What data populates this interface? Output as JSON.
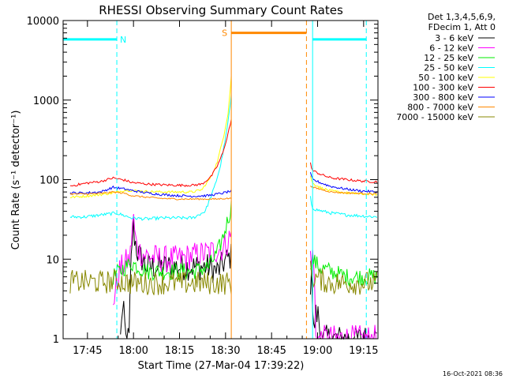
{
  "chart_data": {
    "type": "line",
    "title": "RHESSI Observing Summary Count Rates",
    "xlabel": "Start Time (27-Mar-04 17:39:22)",
    "ylabel": "Count Rate (s⁻¹ detector⁻¹)",
    "yscale": "log",
    "ylim": [
      1,
      10000
    ],
    "xlim_minutes": [
      17.5,
      17.65,
      18.0,
      18.25,
      18.5
    ],
    "x_range": [
      -2.3,
      100.3
    ],
    "x_ticks": [
      {
        "t": 5.63,
        "label": "17:45"
      },
      {
        "t": 20.63,
        "label": "18:00"
      },
      {
        "t": 35.63,
        "label": "18:15"
      },
      {
        "t": 50.63,
        "label": "18:30"
      },
      {
        "t": 65.63,
        "label": "18:45"
      },
      {
        "t": 80.63,
        "label": "19:00"
      },
      {
        "t": 95.63,
        "label": "19:15"
      }
    ],
    "y_ticks": [
      {
        "v": 1,
        "label": "1"
      },
      {
        "v": 10,
        "label": "10"
      },
      {
        "v": 100,
        "label": "100"
      },
      {
        "v": 1000,
        "label": "1000"
      },
      {
        "v": 10000,
        "label": "10000"
      }
    ],
    "legend_header": [
      "Det 1,3,4,5,6,9,",
      "FDecim 1, Att 0"
    ],
    "timestamp": "16-Oct-2021 08:36",
    "gaps": [
      [
        52.5,
        78.3
      ]
    ],
    "series": [
      {
        "name": "3 - 6 keV",
        "color": "#000000",
        "noise": 0.35,
        "points": [
          [
            16.4,
            1
          ],
          [
            16.6,
            2
          ],
          [
            17.6,
            2
          ],
          [
            18.0,
            1
          ],
          [
            19.3,
            1
          ],
          [
            19.6,
            5
          ],
          [
            20.0,
            12
          ],
          [
            20.5,
            30
          ],
          [
            21.0,
            18
          ],
          [
            22.0,
            12
          ],
          [
            25,
            8
          ],
          [
            30,
            8
          ],
          [
            35,
            8
          ],
          [
            40,
            8
          ],
          [
            45,
            8
          ],
          [
            48,
            7
          ],
          [
            50,
            9
          ],
          [
            52.5,
            11
          ],
          [
            78.3,
            5
          ],
          [
            78.8,
            12
          ],
          [
            79.1,
            1
          ],
          [
            80,
            2
          ],
          [
            81,
            2
          ],
          [
            81.5,
            1
          ],
          [
            100,
            1
          ]
        ]
      },
      {
        "name": "6 - 12 keV",
        "color": "#ff00ff",
        "noise": 0.35,
        "points": [
          [
            14,
            3
          ],
          [
            16,
            7
          ],
          [
            18,
            9
          ],
          [
            19.5,
            10
          ],
          [
            20.5,
            35
          ],
          [
            21.5,
            15
          ],
          [
            23,
            12
          ],
          [
            25,
            11
          ],
          [
            30,
            10
          ],
          [
            35,
            10
          ],
          [
            40,
            11
          ],
          [
            45,
            12
          ],
          [
            50,
            14
          ],
          [
            52.5,
            20
          ],
          [
            78.3,
            12
          ],
          [
            79.5,
            9
          ],
          [
            80,
            1
          ],
          [
            81,
            1
          ],
          [
            82,
            1
          ],
          [
            82.5,
            1
          ],
          [
            100,
            1
          ]
        ]
      },
      {
        "name": "12 - 25 keV",
        "color": "#00ee00",
        "noise": 0.22,
        "points": [
          [
            14,
            6
          ],
          [
            16,
            7
          ],
          [
            18,
            8
          ],
          [
            20,
            9
          ],
          [
            22,
            8
          ],
          [
            25,
            7
          ],
          [
            30,
            7
          ],
          [
            35,
            7
          ],
          [
            40,
            7
          ],
          [
            45,
            8
          ],
          [
            48,
            12
          ],
          [
            50,
            20
          ],
          [
            52.5,
            45
          ],
          [
            78.3,
            9
          ],
          [
            79,
            10
          ],
          [
            81,
            8
          ],
          [
            85,
            7
          ],
          [
            90,
            6
          ],
          [
            95,
            6
          ],
          [
            100,
            6
          ]
        ]
      },
      {
        "name": "25 - 50 keV",
        "color": "#00ffff",
        "noise": 0.04,
        "points": [
          [
            0,
            34
          ],
          [
            5,
            34
          ],
          [
            10,
            36
          ],
          [
            15,
            38
          ],
          [
            18,
            35
          ],
          [
            20,
            33
          ],
          [
            25,
            32
          ],
          [
            30,
            33
          ],
          [
            35,
            33
          ],
          [
            40,
            33
          ],
          [
            44,
            40
          ],
          [
            47,
            80
          ],
          [
            49,
            150
          ],
          [
            51,
            400
          ],
          [
            52.5,
            1100
          ],
          [
            78.3,
            60
          ],
          [
            78.8,
            45
          ],
          [
            80,
            42
          ],
          [
            85,
            38
          ],
          [
            90,
            36
          ],
          [
            95,
            35
          ],
          [
            100,
            34
          ]
        ]
      },
      {
        "name": "50 - 100 keV",
        "color": "#ffff00",
        "noise": 0.03,
        "points": [
          [
            0,
            60
          ],
          [
            5,
            62
          ],
          [
            10,
            65
          ],
          [
            14,
            68
          ],
          [
            18,
            74
          ],
          [
            20,
            73
          ],
          [
            25,
            71
          ],
          [
            30,
            70
          ],
          [
            35,
            70
          ],
          [
            40,
            70
          ],
          [
            43,
            75
          ],
          [
            46,
            110
          ],
          [
            48,
            170
          ],
          [
            50,
            350
          ],
          [
            51.5,
            700
          ],
          [
            52.5,
            2000
          ],
          [
            78.3,
            110
          ],
          [
            79,
            90
          ],
          [
            82,
            78
          ],
          [
            85,
            72
          ],
          [
            90,
            68
          ],
          [
            95,
            66
          ],
          [
            100,
            65
          ]
        ]
      },
      {
        "name": "100 - 300 keV",
        "color": "#ff0000",
        "noise": 0.03,
        "points": [
          [
            0,
            83
          ],
          [
            5,
            90
          ],
          [
            10,
            95
          ],
          [
            14,
            105
          ],
          [
            18,
            98
          ],
          [
            20,
            92
          ],
          [
            25,
            88
          ],
          [
            30,
            86
          ],
          [
            35,
            85
          ],
          [
            40,
            85
          ],
          [
            43,
            88
          ],
          [
            46,
            110
          ],
          [
            48,
            150
          ],
          [
            50,
            230
          ],
          [
            52.5,
            560
          ],
          [
            78.3,
            160
          ],
          [
            79,
            130
          ],
          [
            82,
            115
          ],
          [
            85,
            105
          ],
          [
            90,
            100
          ],
          [
            95,
            96
          ],
          [
            100,
            94
          ]
        ]
      },
      {
        "name": "300 - 800 keV",
        "color": "#0000ff",
        "noise": 0.03,
        "points": [
          [
            0,
            68
          ],
          [
            5,
            68
          ],
          [
            10,
            70
          ],
          [
            14,
            80
          ],
          [
            18,
            76
          ],
          [
            20,
            73
          ],
          [
            25,
            68
          ],
          [
            30,
            65
          ],
          [
            35,
            63
          ],
          [
            40,
            62
          ],
          [
            45,
            63
          ],
          [
            48,
            66
          ],
          [
            50,
            68
          ],
          [
            52.5,
            72
          ],
          [
            78.3,
            120
          ],
          [
            79,
            100
          ],
          [
            82,
            90
          ],
          [
            85,
            82
          ],
          [
            90,
            76
          ],
          [
            95,
            72
          ],
          [
            100,
            70
          ]
        ]
      },
      {
        "name": "800 - 7000 keV",
        "color": "#ff8800",
        "noise": 0.02,
        "points": [
          [
            0,
            66
          ],
          [
            5,
            66
          ],
          [
            10,
            67
          ],
          [
            14,
            70
          ],
          [
            18,
            67
          ],
          [
            20,
            63
          ],
          [
            25,
            60
          ],
          [
            30,
            58
          ],
          [
            35,
            57
          ],
          [
            40,
            57
          ],
          [
            45,
            57
          ],
          [
            48,
            57
          ],
          [
            50,
            58
          ],
          [
            52.5,
            58
          ],
          [
            78.3,
            85
          ],
          [
            79,
            80
          ],
          [
            82,
            75
          ],
          [
            85,
            70
          ],
          [
            90,
            68
          ],
          [
            95,
            67
          ],
          [
            100,
            66
          ]
        ]
      },
      {
        "name": "7000 - 15000 keV",
        "color": "#888800",
        "noise": 0.3,
        "points": [
          [
            0,
            5.2
          ],
          [
            5,
            5.2
          ],
          [
            10,
            5.1
          ],
          [
            15,
            5.3
          ],
          [
            20,
            5.0
          ],
          [
            25,
            5.0
          ],
          [
            30,
            5.0
          ],
          [
            35,
            5.0
          ],
          [
            40,
            5.0
          ],
          [
            45,
            5.0
          ],
          [
            50,
            5.0
          ],
          [
            52.5,
            5.0
          ],
          [
            78.3,
            7
          ],
          [
            79,
            6
          ],
          [
            85,
            5
          ],
          [
            90,
            5
          ],
          [
            95,
            5
          ],
          [
            100,
            5
          ]
        ]
      }
    ],
    "markers": [
      {
        "label": "N",
        "color": "#00ffff",
        "t_start": -2.3,
        "t_end": 15.2,
        "level": 5800,
        "lines": [
          {
            "t": -2.3,
            "style": "solid"
          },
          {
            "t": 15.2,
            "style": "dashed"
          }
        ]
      },
      {
        "label": "S",
        "color": "#ff8800",
        "t_start": 52.5,
        "t_end": 77.0,
        "level": 7000,
        "lines": [
          {
            "t": 52.5,
            "style": "solid"
          },
          {
            "t": 77.0,
            "style": "dashed"
          }
        ]
      },
      {
        "label": "",
        "color": "#00ffff",
        "t_start": 79.0,
        "t_end": 96.5,
        "level": 5800,
        "lines": [
          {
            "t": 79.0,
            "style": "solid"
          },
          {
            "t": 96.5,
            "style": "dashed"
          }
        ]
      }
    ]
  }
}
